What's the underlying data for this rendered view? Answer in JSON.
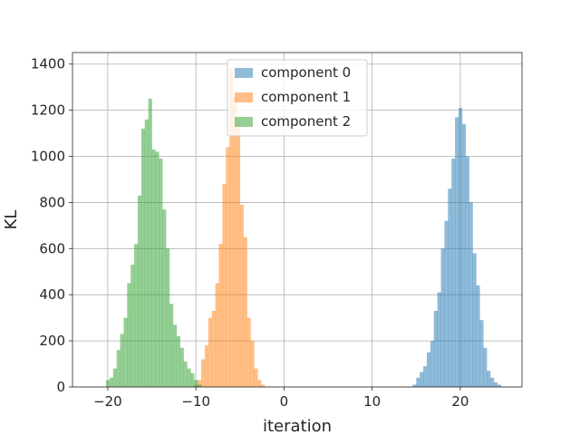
{
  "chart_data": {
    "type": "bar",
    "title": "",
    "xlabel": "iteration",
    "ylabel": "KL",
    "xlim": [
      -24,
      27
    ],
    "ylim": [
      0,
      1450
    ],
    "xticks": [
      -20,
      -10,
      0,
      10,
      20
    ],
    "yticks": [
      0,
      200,
      400,
      600,
      800,
      1000,
      1200,
      1400
    ],
    "grid": true,
    "legend_position": "top-center",
    "bar_opacity": 0.5,
    "series": [
      {
        "name": "component 0",
        "color": "#1f77b4",
        "bin_width": 0.4,
        "bins": [
          [
            14.6,
            10
          ],
          [
            15.0,
            40
          ],
          [
            15.4,
            65
          ],
          [
            15.8,
            90
          ],
          [
            16.2,
            150
          ],
          [
            16.6,
            200
          ],
          [
            17.0,
            330
          ],
          [
            17.4,
            410
          ],
          [
            17.8,
            600
          ],
          [
            18.2,
            720
          ],
          [
            18.6,
            860
          ],
          [
            19.0,
            990
          ],
          [
            19.4,
            1170
          ],
          [
            19.8,
            1210
          ],
          [
            20.2,
            1140
          ],
          [
            20.6,
            1000
          ],
          [
            21.0,
            800
          ],
          [
            21.4,
            580
          ],
          [
            21.8,
            440
          ],
          [
            22.2,
            290
          ],
          [
            22.6,
            170
          ],
          [
            23.0,
            70
          ],
          [
            23.4,
            40
          ],
          [
            23.8,
            20
          ],
          [
            24.2,
            10
          ]
        ]
      },
      {
        "name": "component 1",
        "color": "#ff7f0e",
        "bin_width": 0.4,
        "bins": [
          [
            -10.2,
            10
          ],
          [
            -9.8,
            30
          ],
          [
            -9.4,
            120
          ],
          [
            -9.0,
            180
          ],
          [
            -8.6,
            300
          ],
          [
            -8.2,
            330
          ],
          [
            -7.8,
            450
          ],
          [
            -7.4,
            620
          ],
          [
            -7.0,
            880
          ],
          [
            -6.6,
            1040
          ],
          [
            -6.2,
            1380
          ],
          [
            -5.8,
            1260
          ],
          [
            -5.4,
            1160
          ],
          [
            -5.0,
            790
          ],
          [
            -4.6,
            650
          ],
          [
            -4.2,
            300
          ],
          [
            -3.8,
            200
          ],
          [
            -3.4,
            80
          ],
          [
            -3.0,
            30
          ],
          [
            -2.6,
            10
          ]
        ]
      },
      {
        "name": "component 2",
        "color": "#2ca02c",
        "bin_width": 0.4,
        "bins": [
          [
            -20.2,
            30
          ],
          [
            -19.8,
            40
          ],
          [
            -19.4,
            80
          ],
          [
            -19.0,
            160
          ],
          [
            -18.6,
            230
          ],
          [
            -18.2,
            300
          ],
          [
            -17.8,
            450
          ],
          [
            -17.4,
            530
          ],
          [
            -17.0,
            620
          ],
          [
            -16.6,
            830
          ],
          [
            -16.2,
            1120
          ],
          [
            -15.8,
            1160
          ],
          [
            -15.4,
            1250
          ],
          [
            -15.0,
            1030
          ],
          [
            -14.6,
            1020
          ],
          [
            -14.2,
            990
          ],
          [
            -13.8,
            770
          ],
          [
            -13.4,
            600
          ],
          [
            -13.0,
            360
          ],
          [
            -12.6,
            270
          ],
          [
            -12.2,
            220
          ],
          [
            -11.8,
            170
          ],
          [
            -11.4,
            110
          ],
          [
            -11.0,
            80
          ],
          [
            -10.6,
            60
          ],
          [
            -10.2,
            30
          ],
          [
            -9.8,
            10
          ]
        ]
      }
    ]
  }
}
